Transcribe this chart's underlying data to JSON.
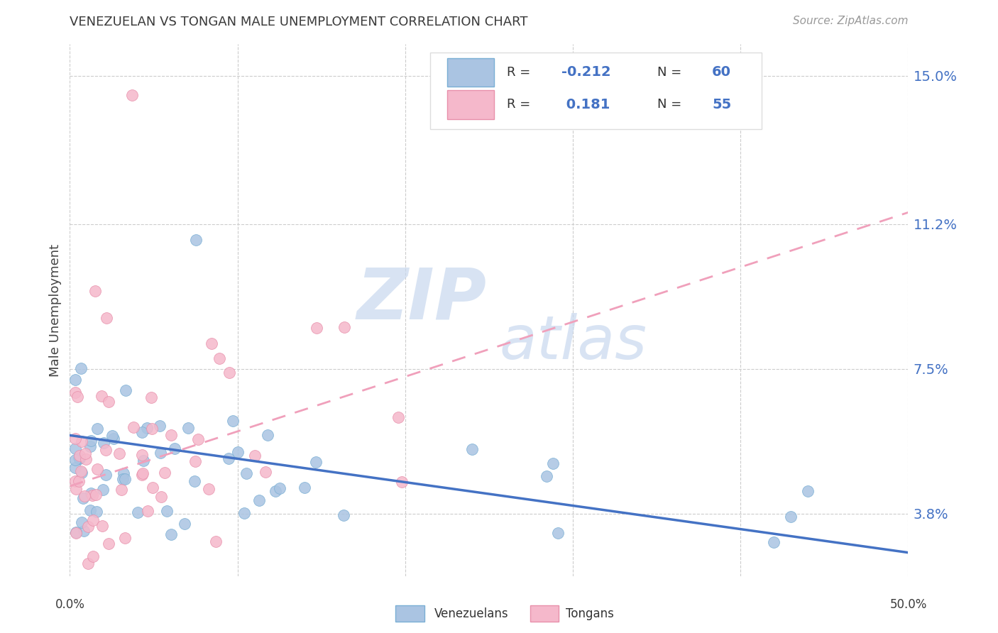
{
  "title": "VENEZUELAN VS TONGAN MALE UNEMPLOYMENT CORRELATION CHART",
  "source": "Source: ZipAtlas.com",
  "ylabel": "Male Unemployment",
  "yticks": [
    3.8,
    7.5,
    11.2,
    15.0
  ],
  "ytick_labels": [
    "3.8%",
    "7.5%",
    "11.2%",
    "15.0%"
  ],
  "xtick_labels": [
    "0.0%",
    "50.0%"
  ],
  "xmin": 0.0,
  "xmax": 0.5,
  "ymin": 2.2,
  "ymax": 15.8,
  "venezuelan_color": "#aac4e2",
  "venezuelan_edge": "#7aafd4",
  "tongan_color": "#f5b8cb",
  "tongan_edge": "#e890ab",
  "venezuelan_line_color": "#4472c4",
  "tongan_line_color": "#f0a0bb",
  "legend_R_venezuelan": "-0.212",
  "legend_N_venezuelan": "60",
  "legend_R_tongan": "0.181",
  "legend_N_tongan": "55",
  "grid_color": "#cccccc",
  "watermark_color": "#c8d8ee",
  "title_color": "#3a3a3a",
  "source_color": "#999999",
  "ytick_color": "#4472c4",
  "xtick_color": "#3a3a3a"
}
